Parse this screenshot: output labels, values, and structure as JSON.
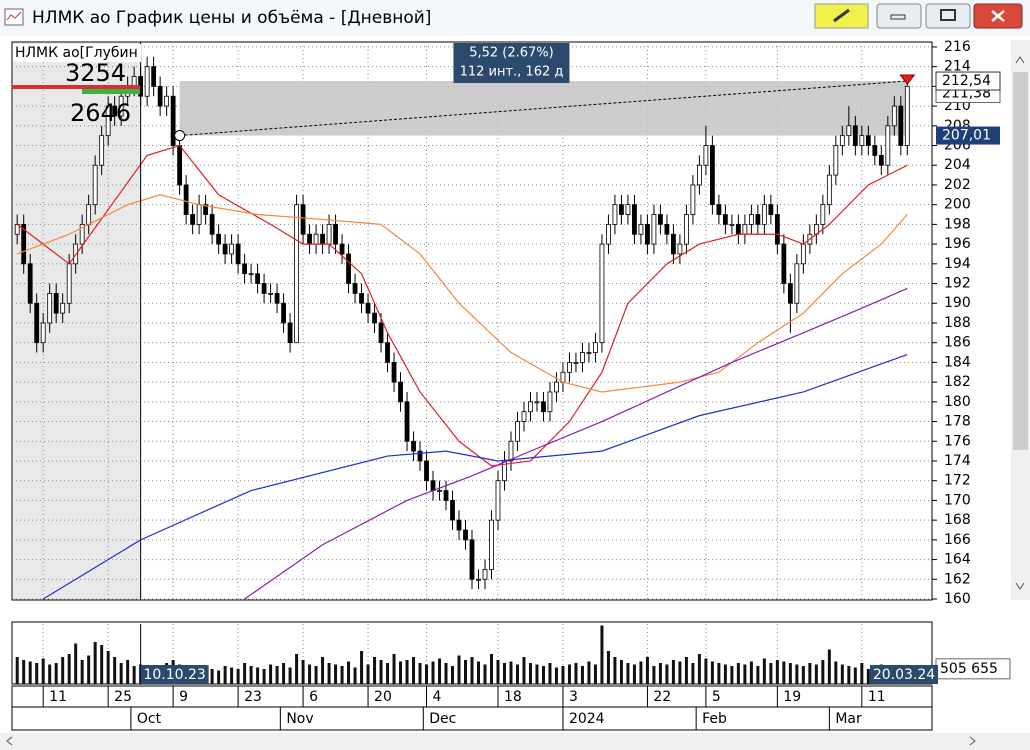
{
  "window": {
    "title": "НЛМК ао График цены и объёма - [Дневной]"
  },
  "chart_data": {
    "type": "candlestick",
    "instrument_label": "НЛМК ао[Глубин",
    "depth_ask": 3254,
    "depth_bid": 2646,
    "xlim": [
      -0.8,
      140.8
    ],
    "ylim": [
      160,
      216.5
    ],
    "grid": true,
    "yticks": [
      160,
      162,
      164,
      166,
      168,
      170,
      172,
      174,
      176,
      178,
      180,
      182,
      184,
      186,
      188,
      190,
      192,
      194,
      196,
      198,
      200,
      202,
      204,
      206,
      208,
      210,
      212,
      214,
      216
    ],
    "xticks": [
      {
        "value": 4,
        "label": "11"
      },
      {
        "value": 14,
        "label": "25"
      },
      {
        "value": 24,
        "label": "9"
      },
      {
        "value": 34,
        "label": "23"
      },
      {
        "value": 44,
        "label": "6"
      },
      {
        "value": 54,
        "label": "20"
      },
      {
        "value": 63,
        "label": "4"
      },
      {
        "value": 74,
        "label": "18"
      },
      {
        "value": 84,
        "label": "3"
      },
      {
        "value": 97,
        "label": "22"
      },
      {
        "value": 106,
        "label": "5"
      },
      {
        "value": 117,
        "label": "19"
      },
      {
        "value": 130,
        "label": "11"
      }
    ],
    "month_ticks": [
      {
        "value": 17.5,
        "label": "Oct"
      },
      {
        "value": 40.5,
        "label": "Nov"
      },
      {
        "value": 62.5,
        "label": "Dec"
      },
      {
        "value": 84,
        "label": "2024"
      },
      {
        "value": 104.5,
        "label": "Feb"
      },
      {
        "value": 125,
        "label": "Mar"
      }
    ],
    "up_color": "#ffffff",
    "down_color": "#000000",
    "open": [
      197,
      198,
      194,
      190,
      186,
      188,
      191,
      189,
      190,
      194,
      196,
      198,
      200,
      204,
      207,
      210,
      209,
      211,
      212,
      213,
      211,
      214,
      212,
      210,
      211,
      206,
      202,
      199,
      198,
      200,
      199,
      197,
      196,
      195,
      196,
      194,
      193,
      193,
      192,
      191,
      191,
      190,
      188,
      186,
      200,
      197,
      196,
      197,
      196,
      198,
      196,
      195,
      192,
      191,
      190,
      189,
      188,
      186,
      184,
      182,
      180,
      176,
      175,
      174,
      172,
      171,
      171,
      170,
      168,
      167,
      166,
      162,
      162,
      163,
      168,
      172,
      174,
      176,
      178,
      179,
      180,
      180,
      179,
      181,
      182,
      183,
      184,
      184,
      185,
      185,
      186,
      196,
      198,
      200,
      199,
      200,
      197,
      198,
      196,
      199,
      198,
      197,
      195,
      196,
      199,
      202,
      204,
      206,
      200,
      199,
      198,
      198,
      197,
      198,
      199,
      198,
      200,
      199,
      196,
      192,
      190,
      194,
      196,
      197,
      198,
      200,
      203,
      206,
      207,
      208,
      206,
      207,
      206,
      205,
      204,
      208,
      210,
      206
    ],
    "high": [
      199,
      199,
      195,
      191,
      189,
      192,
      192,
      191,
      195,
      197,
      199,
      201,
      205,
      208,
      211,
      211,
      212,
      213,
      214,
      214,
      215,
      215,
      213,
      212,
      212,
      207,
      203,
      200,
      201,
      201,
      200,
      198,
      197,
      197,
      197,
      195,
      194,
      194,
      193,
      192,
      192,
      191,
      189,
      201,
      201,
      198,
      198,
      198,
      199,
      199,
      197,
      196,
      193,
      192,
      191,
      190,
      189,
      187,
      185,
      183,
      181,
      177,
      176,
      175,
      173,
      172,
      172,
      171,
      169,
      168,
      167,
      163,
      164,
      169,
      173,
      175,
      177,
      179,
      180,
      181,
      181,
      181,
      182,
      183,
      184,
      185,
      185,
      186,
      186,
      187,
      197,
      199,
      201,
      201,
      201,
      201,
      199,
      199,
      200,
      200,
      199,
      198,
      197,
      200,
      203,
      205,
      208,
      207,
      201,
      200,
      199,
      199,
      199,
      200,
      200,
      201,
      201,
      200,
      197,
      193,
      195,
      197,
      198,
      199,
      201,
      204,
      207,
      208,
      210,
      209,
      208,
      208,
      207,
      206,
      209,
      211,
      211,
      213
    ],
    "low": [
      196,
      193,
      189,
      185,
      185,
      187,
      188,
      188,
      189,
      193,
      195,
      197,
      199,
      203,
      206,
      208,
      208,
      210,
      211,
      210,
      210,
      211,
      209,
      209,
      205,
      201,
      198,
      197,
      197,
      198,
      196,
      195,
      194,
      194,
      193,
      192,
      192,
      191,
      190,
      190,
      189,
      187,
      185,
      186,
      196,
      195,
      195,
      195,
      195,
      195,
      194,
      191,
      190,
      189,
      188,
      187,
      185,
      183,
      181,
      179,
      175,
      174,
      173,
      171,
      170,
      170,
      169,
      167,
      166,
      165,
      161,
      161,
      161,
      162,
      167,
      171,
      173,
      175,
      177,
      178,
      179,
      178,
      178,
      180,
      181,
      182,
      183,
      183,
      184,
      184,
      185,
      195,
      197,
      198,
      198,
      196,
      196,
      195,
      195,
      197,
      196,
      194,
      194,
      195,
      198,
      201,
      203,
      199,
      198,
      197,
      197,
      196,
      196,
      197,
      197,
      197,
      198,
      195,
      191,
      187,
      189,
      193,
      195,
      196,
      197,
      199,
      202,
      205,
      206,
      205,
      205,
      205,
      204,
      203,
      203,
      207,
      205,
      205
    ],
    "close": [
      198,
      194,
      190,
      186,
      188,
      191,
      189,
      190,
      194,
      196,
      198,
      200,
      204,
      207,
      210,
      209,
      211,
      212,
      213,
      211,
      214,
      212,
      210,
      211,
      206,
      202,
      199,
      198,
      200,
      199,
      197,
      196,
      195,
      196,
      194,
      193,
      193,
      192,
      191,
      191,
      190,
      188,
      186,
      200,
      197,
      196,
      197,
      196,
      198,
      196,
      195,
      192,
      191,
      190,
      189,
      188,
      186,
      184,
      182,
      180,
      176,
      175,
      174,
      172,
      171,
      171,
      170,
      168,
      167,
      166,
      162,
      162,
      163,
      168,
      172,
      174,
      176,
      178,
      179,
      180,
      180,
      179,
      181,
      182,
      183,
      184,
      184,
      185,
      185,
      186,
      196,
      198,
      200,
      199,
      200,
      197,
      198,
      196,
      199,
      198,
      197,
      195,
      196,
      199,
      202,
      204,
      206,
      200,
      199,
      198,
      198,
      197,
      198,
      199,
      198,
      200,
      199,
      196,
      192,
      190,
      194,
      196,
      197,
      198,
      200,
      203,
      206,
      207,
      208,
      206,
      207,
      206,
      205,
      204,
      208,
      210,
      206,
      212
    ],
    "ma": [
      {
        "color": "#e02020",
        "x": [
          0,
          8,
          20,
          25,
          31,
          39,
          44,
          48,
          53,
          57,
          62,
          68,
          73,
          79,
          85,
          90,
          94,
          100,
          105,
          111,
          117,
          121,
          125,
          131,
          137
        ],
        "values": [
          198,
          194,
          205,
          206,
          201,
          198,
          196,
          196,
          193,
          187,
          181,
          176,
          173.5,
          174,
          178,
          183,
          190,
          194,
          196,
          197,
          197,
          196,
          198,
          202,
          204
        ]
      },
      {
        "color": "#f08a40",
        "x": [
          0,
          8,
          17,
          22,
          28,
          37,
          47,
          56,
          62,
          68,
          76,
          84,
          90,
          96,
          102,
          108,
          114,
          121,
          127,
          133,
          137
        ],
        "values": [
          195,
          197,
          200,
          201,
          200,
          199,
          198.5,
          198,
          195,
          190,
          185,
          182,
          181,
          181.5,
          182,
          183,
          186,
          189,
          193,
          196,
          199
        ]
      },
      {
        "color": "#8a1fb0",
        "x": [
          35,
          47,
          60,
          70,
          79,
          90,
          100,
          110,
          121,
          130,
          137
        ],
        "values": [
          160,
          165.5,
          170,
          172.5,
          175,
          178,
          181,
          184,
          187,
          189.5,
          191.5
        ]
      },
      {
        "color": "#1f2fd0",
        "x": [
          4,
          19,
          36,
          57,
          66,
          74,
          90,
          105,
          121,
          137
        ],
        "values": [
          160,
          166,
          171,
          174.5,
          175,
          174,
          175,
          178.6,
          181,
          184.8
        ]
      }
    ],
    "cursor_x": 19,
    "cursor_date": "10.10.23",
    "last_date": "20.03.24",
    "measure": {
      "x0": 25,
      "x1": 137,
      "change_label": "5,52 (2.67%)",
      "span_label": "112 инт., 162 д",
      "from": {
        "value": 207.01,
        "label": "207,01"
      },
      "to": {
        "value": 212.54,
        "label": "212,54"
      }
    },
    "price_marker": {
      "value": 211.38,
      "label": "211,38"
    },
    "volume": {
      "color": "#111111",
      "vlim": [
        0,
        2000000
      ],
      "vticks": [
        {
          "value": 505655,
          "label": "505 655"
        }
      ],
      "values": [
        900000,
        800000,
        750000,
        700000,
        850000,
        650000,
        700000,
        900000,
        1000000,
        1350000,
        800000,
        950000,
        1400000,
        1300000,
        1100000,
        900000,
        700000,
        800000,
        600000,
        650000,
        550000,
        600000,
        500000,
        700000,
        800000,
        650000,
        600000,
        500000,
        550000,
        600000,
        500000,
        450000,
        600000,
        550000,
        500000,
        700000,
        600000,
        550000,
        500000,
        650000,
        600000,
        700000,
        550000,
        1000000,
        800000,
        650000,
        600000,
        900000,
        700000,
        650000,
        600000,
        750000,
        550000,
        1100000,
        650000,
        900000,
        800000,
        700000,
        1000000,
        750000,
        800000,
        900000,
        700000,
        650000,
        750000,
        850000,
        700000,
        600000,
        950000,
        800000,
        900000,
        750000,
        650000,
        1000000,
        800000,
        700000,
        750000,
        650000,
        900000,
        700000,
        650000,
        600000,
        700000,
        550000,
        600000,
        650000,
        700000,
        600000,
        750000,
        650000,
        1950000,
        1100000,
        900000,
        800000,
        700000,
        650000,
        750000,
        900000,
        600000,
        700000,
        650000,
        800000,
        750000,
        900000,
        700000,
        1000000,
        850000,
        750000,
        700000,
        650000,
        600000,
        700000,
        650000,
        750000,
        600000,
        850000,
        700000,
        800000,
        750000,
        700000,
        650000,
        600000,
        700000,
        650000,
        800000,
        1150000,
        750000,
        650000,
        600000,
        550000,
        700000,
        500000,
        600000,
        650000,
        550000,
        500000,
        600000,
        505655
      ]
    }
  }
}
